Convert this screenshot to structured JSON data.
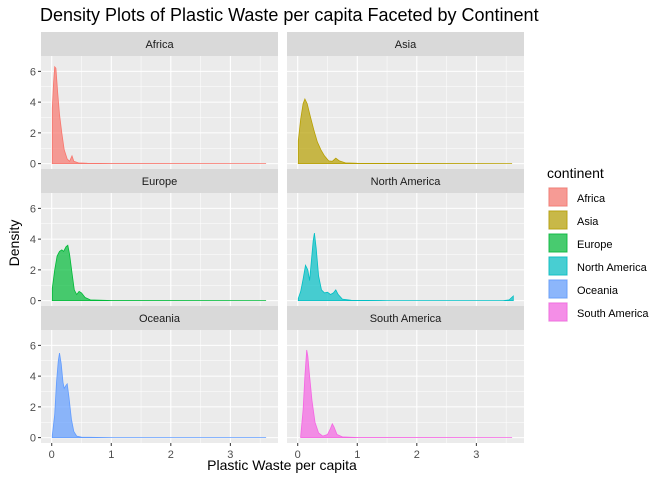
{
  "chart_data": {
    "type": "area",
    "title": "Density Plots of Plastic Waste per capita Faceted by Continent",
    "xlabel": "Plastic Waste per capita",
    "ylabel": "Density",
    "xlim": [
      -0.18,
      3.8
    ],
    "ylim": [
      -0.35,
      7.0
    ],
    "x_ticks": [
      0,
      1,
      2,
      3
    ],
    "y_ticks": [
      0,
      2,
      4,
      6
    ],
    "grid": true,
    "legend": {
      "title": "continent",
      "position": "right"
    },
    "facets": [
      {
        "name": "Africa",
        "color": "#F8766D",
        "points": [
          [
            0.01,
            3.6
          ],
          [
            0.03,
            5.2
          ],
          [
            0.05,
            6.3
          ],
          [
            0.07,
            6.2
          ],
          [
            0.1,
            4.6
          ],
          [
            0.13,
            3.2
          ],
          [
            0.17,
            2.0
          ],
          [
            0.21,
            0.9
          ],
          [
            0.26,
            0.3
          ],
          [
            0.3,
            0.15
          ],
          [
            0.34,
            0.5
          ],
          [
            0.37,
            0.15
          ],
          [
            0.45,
            0.05
          ],
          [
            0.6,
            0.02
          ],
          [
            1.0,
            0.01
          ],
          [
            3.6,
            0.0
          ]
        ]
      },
      {
        "name": "Asia",
        "color": "#B79F00",
        "points": [
          [
            0.01,
            1.5
          ],
          [
            0.05,
            2.9
          ],
          [
            0.09,
            3.9
          ],
          [
            0.12,
            4.2
          ],
          [
            0.16,
            3.9
          ],
          [
            0.21,
            3.1
          ],
          [
            0.27,
            2.2
          ],
          [
            0.33,
            1.4
          ],
          [
            0.39,
            0.9
          ],
          [
            0.45,
            0.5
          ],
          [
            0.52,
            0.18
          ],
          [
            0.58,
            0.15
          ],
          [
            0.64,
            0.35
          ],
          [
            0.7,
            0.18
          ],
          [
            0.8,
            0.05
          ],
          [
            1.0,
            0.02
          ],
          [
            3.6,
            0.0
          ]
        ]
      },
      {
        "name": "Europe",
        "color": "#00BA38",
        "points": [
          [
            0.01,
            0.8
          ],
          [
            0.05,
            2.0
          ],
          [
            0.09,
            2.9
          ],
          [
            0.13,
            3.2
          ],
          [
            0.17,
            3.3
          ],
          [
            0.2,
            3.2
          ],
          [
            0.24,
            3.5
          ],
          [
            0.27,
            3.6
          ],
          [
            0.3,
            3.0
          ],
          [
            0.34,
            1.8
          ],
          [
            0.38,
            0.7
          ],
          [
            0.42,
            0.4
          ],
          [
            0.46,
            0.6
          ],
          [
            0.5,
            0.5
          ],
          [
            0.56,
            0.2
          ],
          [
            0.65,
            0.05
          ],
          [
            1.0,
            0.01
          ],
          [
            3.6,
            0.0
          ]
        ]
      },
      {
        "name": "North America",
        "color": "#00BFC4",
        "points": [
          [
            0.01,
            0.15
          ],
          [
            0.05,
            0.6
          ],
          [
            0.09,
            1.4
          ],
          [
            0.13,
            2.3
          ],
          [
            0.17,
            2.0
          ],
          [
            0.2,
            1.3
          ],
          [
            0.23,
            2.6
          ],
          [
            0.26,
            3.9
          ],
          [
            0.28,
            4.4
          ],
          [
            0.31,
            3.4
          ],
          [
            0.35,
            1.6
          ],
          [
            0.4,
            0.7
          ],
          [
            0.45,
            0.5
          ],
          [
            0.5,
            0.55
          ],
          [
            0.55,
            0.4
          ],
          [
            0.6,
            0.5
          ],
          [
            0.64,
            0.7
          ],
          [
            0.68,
            0.4
          ],
          [
            0.75,
            0.1
          ],
          [
            0.9,
            0.02
          ],
          [
            1.5,
            0.0
          ],
          [
            3.45,
            0.0
          ],
          [
            3.55,
            0.05
          ],
          [
            3.62,
            0.3
          ]
        ]
      },
      {
        "name": "Oceania",
        "color": "#619CFF",
        "points": [
          [
            0.01,
            0.15
          ],
          [
            0.05,
            1.5
          ],
          [
            0.08,
            3.6
          ],
          [
            0.11,
            5.0
          ],
          [
            0.13,
            5.5
          ],
          [
            0.16,
            4.8
          ],
          [
            0.19,
            3.6
          ],
          [
            0.21,
            3.2
          ],
          [
            0.24,
            3.4
          ],
          [
            0.26,
            3.5
          ],
          [
            0.29,
            2.6
          ],
          [
            0.33,
            1.2
          ],
          [
            0.37,
            0.4
          ],
          [
            0.42,
            0.1
          ],
          [
            0.5,
            0.03
          ],
          [
            1.0,
            0.0
          ],
          [
            3.6,
            0.0
          ]
        ]
      },
      {
        "name": "South America",
        "color": "#F564E3",
        "points": [
          [
            0.05,
            0.1
          ],
          [
            0.09,
            1.8
          ],
          [
            0.12,
            4.0
          ],
          [
            0.15,
            5.7
          ],
          [
            0.17,
            5.3
          ],
          [
            0.2,
            4.0
          ],
          [
            0.24,
            2.4
          ],
          [
            0.29,
            1.0
          ],
          [
            0.35,
            0.3
          ],
          [
            0.42,
            0.1
          ],
          [
            0.5,
            0.2
          ],
          [
            0.55,
            0.6
          ],
          [
            0.58,
            0.9
          ],
          [
            0.61,
            0.7
          ],
          [
            0.66,
            0.2
          ],
          [
            0.75,
            0.05
          ],
          [
            1.0,
            0.01
          ],
          [
            3.6,
            0.0
          ]
        ]
      }
    ]
  }
}
